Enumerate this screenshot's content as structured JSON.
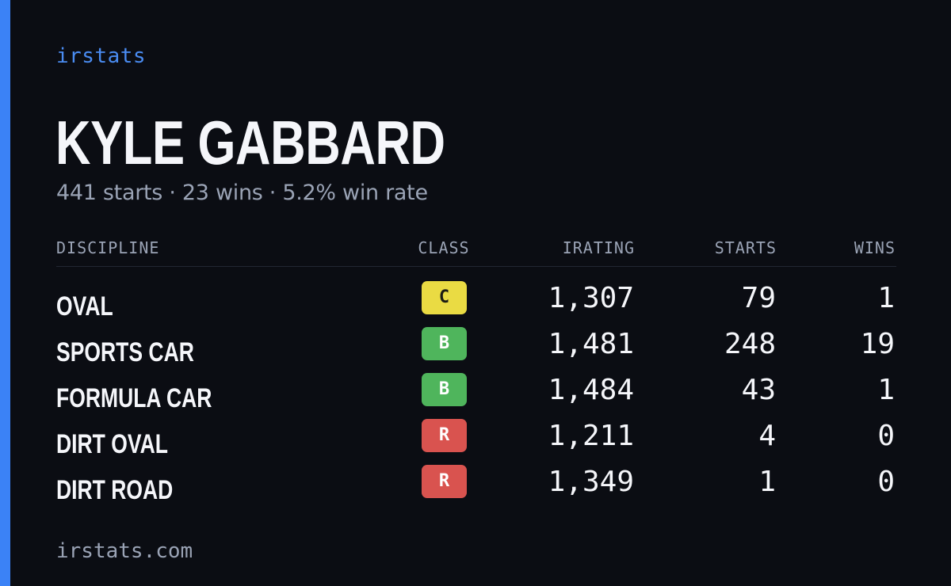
{
  "brand": "irstats",
  "driver": {
    "name": "KYLE GABBARD",
    "summary": "441 starts · 23 wins · 5.2% win rate"
  },
  "table": {
    "headers": {
      "discipline": "DISCIPLINE",
      "class": "CLASS",
      "irating": "IRATING",
      "starts": "STARTS",
      "wins": "WINS"
    },
    "rows": [
      {
        "discipline": "OVAL",
        "class": "C",
        "irating": "1,307",
        "starts": "79",
        "wins": "1"
      },
      {
        "discipline": "SPORTS CAR",
        "class": "B",
        "irating": "1,481",
        "starts": "248",
        "wins": "19"
      },
      {
        "discipline": "FORMULA CAR",
        "class": "B",
        "irating": "1,484",
        "starts": "43",
        "wins": "1"
      },
      {
        "discipline": "DIRT OVAL",
        "class": "R",
        "irating": "1,211",
        "starts": "4",
        "wins": "0"
      },
      {
        "discipline": "DIRT ROAD",
        "class": "R",
        "irating": "1,349",
        "starts": "1",
        "wins": "0"
      }
    ]
  },
  "footer": "irstats.com",
  "colors": {
    "background": "#0b0d13",
    "accent": "#3b82f6",
    "class_c": "#eadb43",
    "class_b": "#4fb55c",
    "class_r": "#d9534f"
  }
}
